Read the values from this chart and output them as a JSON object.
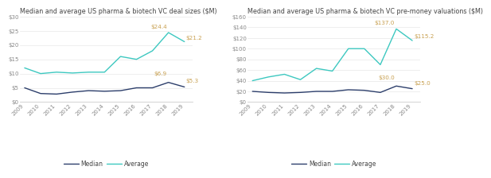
{
  "years": [
    2009,
    2010,
    2011,
    2012,
    2013,
    2014,
    2015,
    2016,
    2017,
    2018,
    2019
  ],
  "chart1": {
    "title": "Median and average US pharma & biotech VC deal sizes ($M)",
    "median": [
      5.0,
      3.0,
      2.8,
      3.5,
      4.0,
      3.8,
      4.0,
      5.0,
      5.0,
      6.9,
      5.3
    ],
    "average": [
      12.0,
      10.0,
      10.5,
      10.2,
      10.5,
      10.5,
      16.0,
      15.0,
      18.0,
      24.4,
      21.2
    ],
    "ylim": [
      0,
      30
    ],
    "yticks": [
      0,
      5,
      10,
      15,
      20,
      25,
      30
    ],
    "ann_2018_med_val": 6.9,
    "ann_2019_med_val": 5.3,
    "ann_2018_avg_val": 24.4,
    "ann_2019_avg_val": 21.2,
    "label_2018_median": "$6.9",
    "label_2019_median": "$5.3",
    "label_2018_avg": "$24.4",
    "label_2019_avg": "$21.2"
  },
  "chart2": {
    "title": "Median and average US pharma & biotech VC pre-money valuations ($M)",
    "median": [
      20.0,
      18.0,
      17.0,
      18.0,
      20.0,
      20.0,
      23.0,
      22.0,
      18.0,
      30.0,
      25.0
    ],
    "average": [
      40.0,
      47.0,
      52.0,
      42.0,
      63.0,
      58.0,
      100.0,
      100.0,
      70.0,
      137.0,
      115.2
    ],
    "ylim": [
      0,
      160
    ],
    "yticks": [
      0,
      20,
      40,
      60,
      80,
      100,
      120,
      140,
      160
    ],
    "ann_2018_med_val": 30.0,
    "ann_2019_med_val": 25.0,
    "ann_2018_avg_val": 137.0,
    "ann_2019_avg_val": 115.2,
    "label_2018_median": "$30.0",
    "label_2019_median": "$25.0",
    "label_2018_avg": "$137.0",
    "label_2019_avg": "$115.2"
  },
  "median_color": "#2c3e6b",
  "average_color": "#3dc8c0",
  "annotation_color": "#c8a050",
  "bg_color": "#ffffff",
  "title_fontsize": 5.8,
  "label_fontsize": 5.2,
  "tick_fontsize": 5.0,
  "legend_fontsize": 5.5,
  "line_width": 1.0
}
